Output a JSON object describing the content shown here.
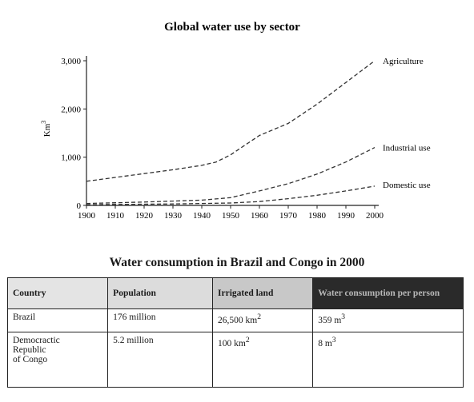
{
  "chart_data": {
    "type": "line",
    "title": "Global water use by sector",
    "ylabel": "Km",
    "ylabel_sup": "3",
    "xlim": [
      1900,
      2000
    ],
    "ylim": [
      0,
      3000
    ],
    "x_ticks": [
      1900,
      1910,
      1920,
      1930,
      1940,
      1950,
      1960,
      1970,
      1980,
      1990,
      2000
    ],
    "y_ticks": [
      0,
      1000,
      2000,
      3000
    ],
    "y_tick_labels": [
      "0",
      "1,000",
      "2,000",
      "3,000"
    ],
    "line_style": "dashed",
    "grid": false,
    "series": [
      {
        "name": "Agriculture",
        "x": [
          1900,
          1910,
          1920,
          1930,
          1940,
          1945,
          1950,
          1960,
          1970,
          1980,
          1990,
          2000
        ],
        "values": [
          500,
          580,
          660,
          740,
          830,
          900,
          1050,
          1450,
          1700,
          2100,
          2550,
          3000
        ]
      },
      {
        "name": "Industrial use",
        "x": [
          1900,
          1910,
          1920,
          1930,
          1940,
          1950,
          1960,
          1970,
          1980,
          1990,
          2000
        ],
        "values": [
          40,
          55,
          70,
          90,
          110,
          160,
          300,
          450,
          650,
          900,
          1200
        ]
      },
      {
        "name": "Domestic use",
        "x": [
          1900,
          1910,
          1920,
          1930,
          1940,
          1950,
          1960,
          1970,
          1980,
          1990,
          2000
        ],
        "values": [
          15,
          20,
          25,
          30,
          40,
          50,
          80,
          140,
          210,
          300,
          400
        ]
      }
    ]
  },
  "table": {
    "title": "Water consumption in Brazil and Congo in 2000",
    "headers": [
      "Country",
      "Population",
      "Irrigated land",
      "Water consumption per person"
    ],
    "rows": [
      {
        "country": "Brazil",
        "population": "176 million",
        "irrigated": "26,500 km",
        "irrigated_sup": "2",
        "consumption": "359 m",
        "consumption_sup": "3"
      },
      {
        "country_lines": [
          "Democractic",
          "Republic",
          "of Congo"
        ],
        "population": "5.2 million",
        "irrigated": "100 km",
        "irrigated_sup": "2",
        "consumption": "8 m",
        "consumption_sup": "3"
      }
    ]
  }
}
